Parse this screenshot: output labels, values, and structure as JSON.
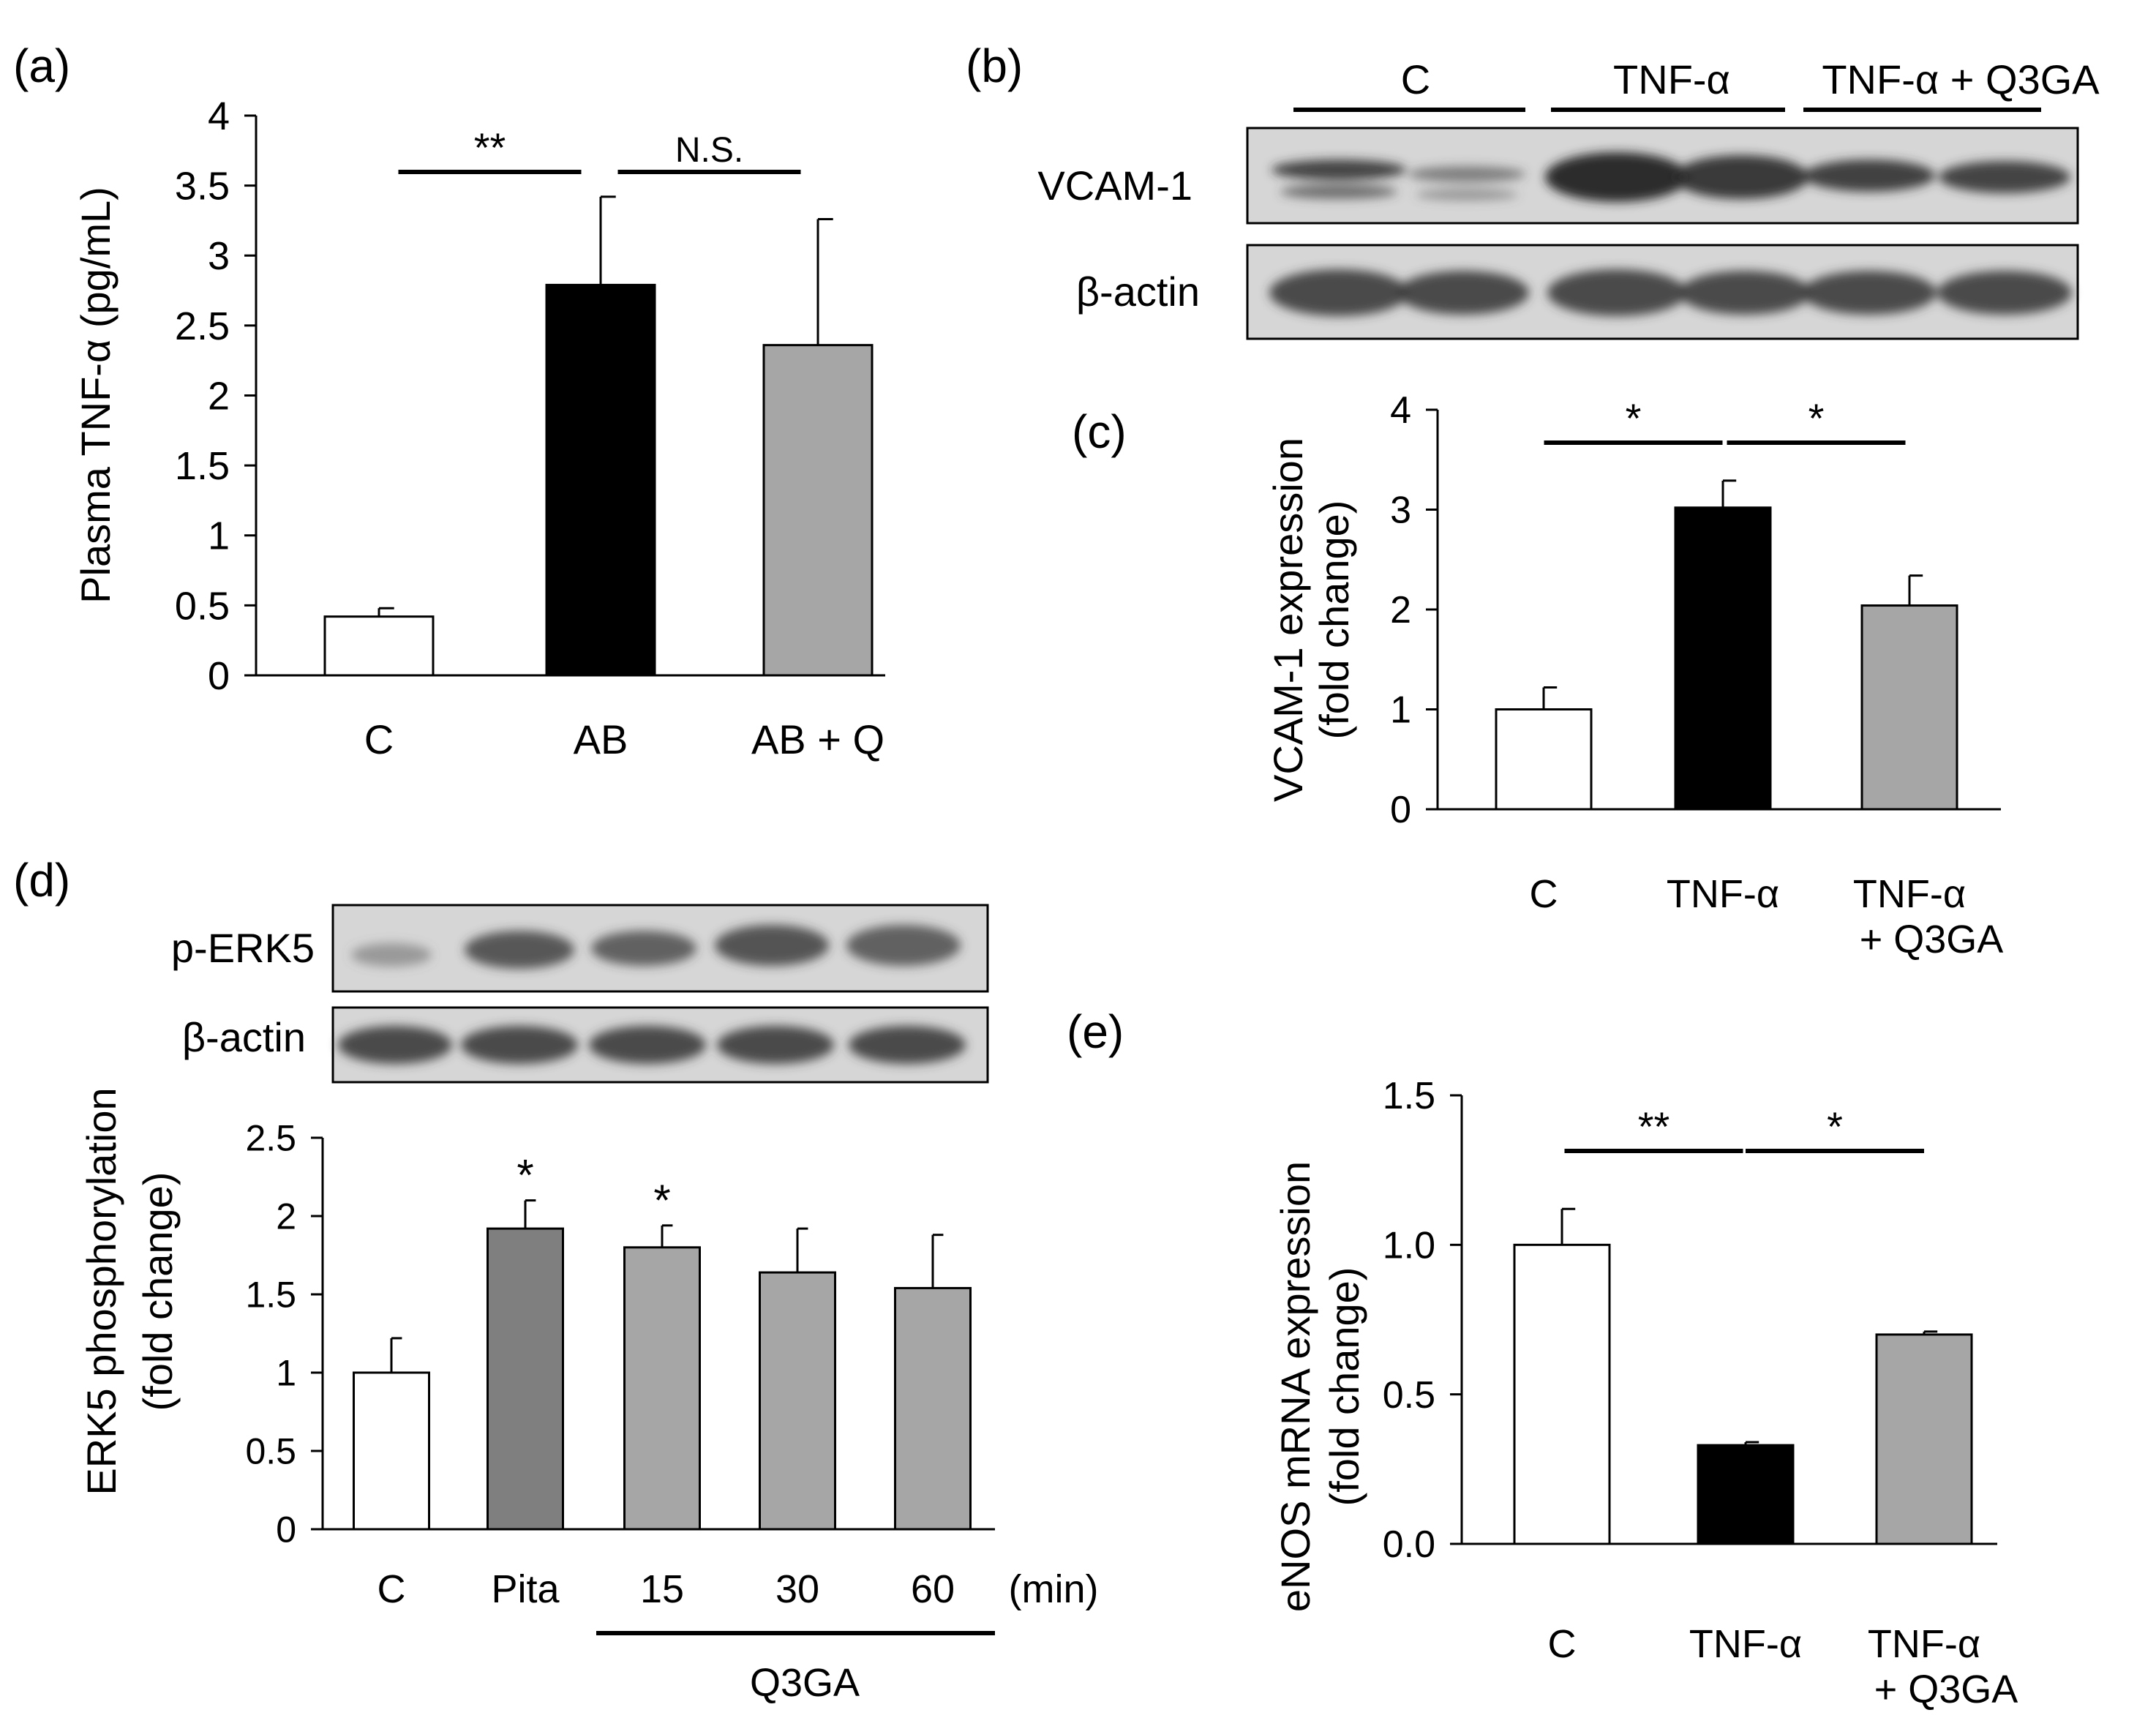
{
  "colors": {
    "white_bar": "#ffffff",
    "black_bar": "#000000",
    "gray_bar": "#a6a6a6",
    "darkgray_bar": "#7f7f7f",
    "axis": "#000000",
    "blot_bg": "#d6d6d6"
  },
  "chart_data": [
    {
      "panel": "(a)",
      "type": "bar",
      "ylabel": "Plasma TNF-α (pg/mL)",
      "ylim": [
        0,
        4
      ],
      "yticks": [
        0,
        0.5,
        1,
        1.5,
        2,
        2.5,
        3,
        3.5,
        4
      ],
      "ytick_labels": [
        "0",
        "0.5",
        "1",
        "1.5",
        "2",
        "2.5",
        "3",
        "3.5",
        "4"
      ],
      "categories": [
        "C",
        "AB",
        "AB + Q"
      ],
      "values": [
        0.42,
        2.79,
        2.36
      ],
      "errors": [
        0.06,
        0.63,
        0.9
      ],
      "fills": [
        "white",
        "black",
        "gray"
      ],
      "significance": [
        {
          "from": 0,
          "to": 1,
          "label": "**"
        },
        {
          "from": 1,
          "to": 2,
          "label": "N.S."
        }
      ]
    },
    {
      "panel": "(c)",
      "type": "bar",
      "ylabel": [
        "VCAM-1 expression",
        "(fold change)"
      ],
      "ylim": [
        0,
        4
      ],
      "yticks": [
        0,
        1,
        2,
        3,
        4
      ],
      "ytick_labels": [
        "0",
        "1",
        "2",
        "3",
        "4"
      ],
      "categories": [
        [
          "C"
        ],
        [
          "TNF-α"
        ],
        [
          "TNF-α",
          "+ Q3GA"
        ]
      ],
      "values": [
        1.0,
        3.02,
        2.04
      ],
      "errors": [
        0.22,
        0.27,
        0.3
      ],
      "fills": [
        "white",
        "black",
        "gray"
      ],
      "significance": [
        {
          "from": 0,
          "to": 1,
          "label": "*"
        },
        {
          "from": 1,
          "to": 2,
          "label": "*"
        }
      ]
    },
    {
      "panel": "(d)",
      "type": "bar",
      "ylabel": [
        "ERK5 phosphorylation",
        "(fold change)"
      ],
      "ylim": [
        0,
        2.5
      ],
      "yticks": [
        0,
        0.5,
        1,
        1.5,
        2,
        2.5
      ],
      "ytick_labels": [
        "0",
        "0.5",
        "1",
        "1.5",
        "2",
        "2.5"
      ],
      "categories": [
        "C",
        "Pita",
        "15",
        "30",
        "60"
      ],
      "values": [
        1.0,
        1.92,
        1.8,
        1.64,
        1.54
      ],
      "errors": [
        0.22,
        0.18,
        0.14,
        0.28,
        0.34
      ],
      "fills": [
        "white",
        "darkgray",
        "gray",
        "gray",
        "gray"
      ],
      "bar_marks": [
        "",
        "*",
        "*",
        "",
        ""
      ],
      "unit_label": "(min)",
      "group_label": "Q3GA"
    },
    {
      "panel": "(e)",
      "type": "bar",
      "ylabel": [
        "eNOS mRNA expression",
        "(fold change)"
      ],
      "ylim": [
        0,
        1.5
      ],
      "yticks": [
        0,
        0.5,
        1.0,
        1.5
      ],
      "ytick_labels": [
        "0.0",
        "0.5",
        "1.0",
        "1.5"
      ],
      "categories": [
        [
          "C"
        ],
        [
          "TNF-α"
        ],
        [
          "TNF-α",
          "+ Q3GA"
        ]
      ],
      "values": [
        1.0,
        0.33,
        0.7
      ],
      "errors": [
        0.12,
        0.01,
        0.01
      ],
      "fills": [
        "white",
        "black",
        "gray"
      ],
      "significance": [
        {
          "from": 0,
          "to": 1,
          "label": "**"
        },
        {
          "from": 1,
          "to": 2,
          "label": "*"
        }
      ]
    }
  ],
  "blot_b": {
    "panel": "(b)",
    "group_labels": [
      "C",
      "TNF-α",
      "TNF-α + Q3GA"
    ],
    "row_labels": [
      "VCAM-1",
      "β-actin"
    ]
  },
  "blot_d": {
    "row_labels": [
      "p-ERK5",
      "β-actin"
    ]
  }
}
